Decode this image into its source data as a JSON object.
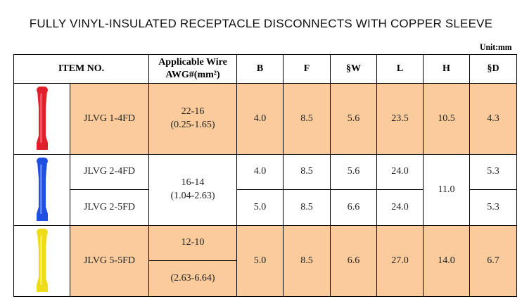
{
  "title": "FULLY VINYL-INSULATED RECEPTACLE DISCONNECTS WITH COPPER SLEEVE",
  "unit": "Unit:mm",
  "headers": {
    "item": "ITEM NO.",
    "wire1": "Applicable Wire",
    "wire2": "AWG#(mm²)",
    "b": "B",
    "f": "F",
    "w": "§W",
    "l": "L",
    "h": "H",
    "d": "§D"
  },
  "rows": [
    {
      "item": "JLVG 1-4FD",
      "awg": "22-16",
      "mm2": "(0.25-1.65)",
      "b": "4.0",
      "f": "8.5",
      "w": "5.6",
      "l": "23.5",
      "h": "10.5",
      "d": "4.3",
      "color": "#e0202a"
    },
    {
      "item": "JLVG 2-4FD",
      "awg": "16-14",
      "mm2": "(1.04-2.63)",
      "b": "4.0",
      "f": "8.5",
      "w": "5.6",
      "l": "24.0",
      "h": "11.0",
      "d": "5.3",
      "color": "#1e4fe0"
    },
    {
      "item": "JLVG 2-5FD",
      "b": "5.0",
      "f": "8.5",
      "w": "6.6",
      "l": "24.0",
      "d": "5.3"
    },
    {
      "item": "JLVG 5-5FD",
      "awg": "12-10",
      "mm2": "(2.63-6.64)",
      "b": "5.0",
      "f": "8.5",
      "w": "6.6",
      "l": "27.0",
      "h": "14.0",
      "d": "6.7",
      "color": "#f0e020"
    }
  ]
}
